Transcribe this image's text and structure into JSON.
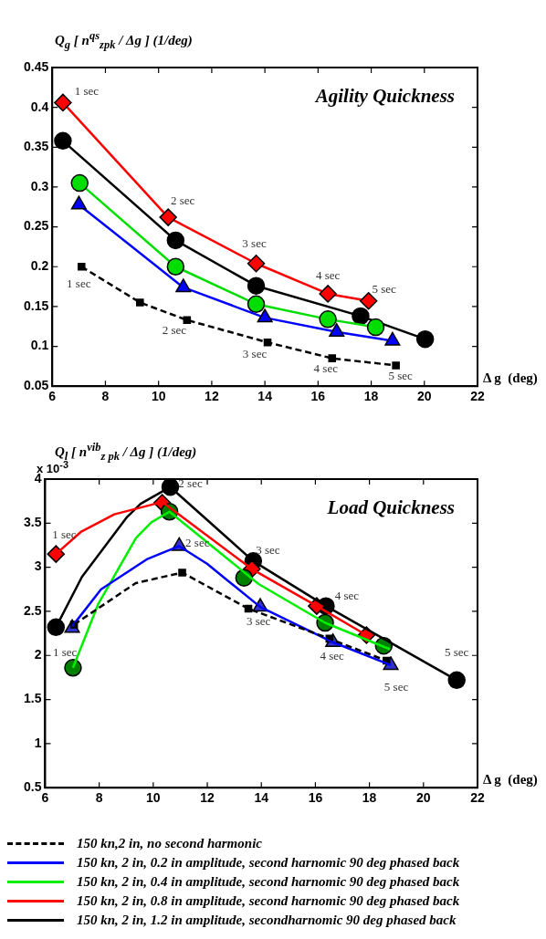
{
  "chart_data": [
    {
      "type": "line",
      "title": "Agility Quickness",
      "xlabel": "Δ g  (deg)",
      "ylabel": "Q$_{g}$ [ n$^{qs}$$_{zpk}$ / Δg ]   (1/deg)",
      "xlim": [
        6,
        22
      ],
      "xticks": [
        6,
        8,
        10,
        12,
        14,
        16,
        18,
        20,
        22
      ],
      "ylim": [
        0.05,
        0.45
      ],
      "yticks": [
        0.05,
        0.1,
        0.15,
        0.2,
        0.25,
        0.3,
        0.35,
        0.4,
        0.45
      ],
      "grid": false,
      "legend": false,
      "series": [
        {
          "color": "#000000",
          "marker": "square",
          "line_style": "dashed",
          "x": [
            7.1,
            9.3,
            11.07,
            14.1,
            16.53,
            18.93
          ],
          "values": [
            0.2,
            0.155,
            0.133,
            0.105,
            0.085,
            0.076
          ]
        },
        {
          "color": "#0000ff",
          "marker": "triangle",
          "x": [
            7.0,
            10.93,
            14.0,
            16.7,
            18.8
          ],
          "values": [
            0.278,
            0.174,
            0.136,
            0.118,
            0.107
          ]
        },
        {
          "color": "#00dd00",
          "marker": "circle",
          "x": [
            7.03,
            10.64,
            13.67,
            16.37,
            18.17
          ],
          "values": [
            0.305,
            0.2,
            0.153,
            0.134,
            0.124
          ]
        },
        {
          "color": "#ff0000",
          "marker": "diamond",
          "x": [
            6.4,
            10.36,
            13.67,
            16.37,
            17.9
          ],
          "values": [
            0.406,
            0.262,
            0.204,
            0.166,
            0.157
          ]
        },
        {
          "color": "#000000",
          "marker": "circle",
          "x": [
            6.4,
            10.64,
            13.67,
            17.6,
            20.03
          ],
          "values": [
            0.358,
            0.233,
            0.176,
            0.138,
            0.109
          ]
        }
      ],
      "annotations": [
        {
          "text": "1 sec",
          "x": 6.4,
          "y": 0.406
        },
        {
          "text": "2 sec",
          "x": 10.36,
          "y": 0.262
        },
        {
          "text": "3 sec",
          "x": 13.67,
          "y": 0.204
        },
        {
          "text": "4 sec",
          "x": 16.37,
          "y": 0.166
        },
        {
          "text": "5 sec",
          "x": 17.9,
          "y": 0.157
        },
        {
          "text": "1 sec",
          "x": 7.1,
          "y": 0.2
        },
        {
          "text": "2 sec",
          "x": 11.07,
          "y": 0.133
        },
        {
          "text": "3 sec",
          "x": 14.1,
          "y": 0.105
        },
        {
          "text": "4 sec",
          "x": 16.53,
          "y": 0.085
        },
        {
          "text": "5 sec",
          "x": 18.93,
          "y": 0.076
        }
      ]
    },
    {
      "type": "line",
      "title": "Load Quickness",
      "xlabel": "Δ g  (deg)",
      "ylabel": "Q$_{l}$ [ n$^{vib}$$_{z pk}$ / Δg ]   (1/deg)",
      "xlim": [
        6,
        22
      ],
      "xticks": [
        6,
        8,
        10,
        12,
        14,
        16,
        18,
        20,
        22
      ],
      "ylim": [
        0.5,
        4
      ],
      "yticks": [
        0.5,
        1,
        1.5,
        2,
        2.5,
        3,
        3.5,
        4
      ],
      "grid": false,
      "legend": "bottom",
      "series": [
        {
          "name": "150 kn,2 in, no second harmonic",
          "color": "#000000",
          "marker": "none",
          "line_style": "dashed",
          "x": [
            7.07,
            9.35,
            11.07,
            13.52,
            16.52,
            18.63
          ],
          "values": [
            2.35,
            2.82,
            2.94,
            2.53,
            2.19,
            1.94
          ]
        },
        {
          "name": "150 kn, 2 in, 0.2 in amplitude, second harnomic 90 deg phased back",
          "color": "#0000ff",
          "marker": "none",
          "x": [
            7.0,
            8.07,
            9.76,
            10.96,
            11.99,
            13.96,
            16.65,
            18.79
          ],
          "values": [
            2.33,
            2.75,
            3.09,
            3.24,
            3.04,
            2.55,
            2.15,
            1.89
          ]
        },
        {
          "name": "150 kn, 2 in, 0.4 in amplitude, second harnomic 90 deg phased back",
          "color": "#00ee00",
          "marker": "none",
          "x": [
            7.03,
            7.96,
            9.36,
            9.93,
            10.6,
            13.9,
            16.36,
            18.76
          ],
          "values": [
            1.86,
            2.58,
            3.33,
            3.51,
            3.63,
            2.81,
            2.37,
            2.07
          ]
        },
        {
          "name": "150 kn, 2 in, 0.8 in amplitude, second harnomic 90 deg phased back",
          "color": "#ff0000",
          "marker": "none",
          "x": [
            6.4,
            7.32,
            8.56,
            10.33,
            13.65,
            16.05,
            17.89
          ],
          "values": [
            3.15,
            3.4,
            3.6,
            3.74,
            2.98,
            2.56,
            2.23
          ]
        },
        {
          "name": "150 kn, 2 in, 1.2 in amplitude, secondharnomic 90 deg phased back",
          "color": "#000000",
          "marker": "none",
          "x": [
            6.4,
            7.36,
            9.03,
            9.53,
            10.63,
            13.7,
            16.39,
            21.23
          ],
          "values": [
            2.32,
            2.89,
            3.57,
            3.72,
            3.91,
            3.07,
            2.56,
            1.72
          ]
        },
        {
          "type": "scatter",
          "color": "#000000",
          "marker": "square",
          "x": [
            7.07,
            11.07,
            13.52,
            16.52,
            18.63
          ],
          "values": [
            2.35,
            2.94,
            2.53,
            2.19,
            1.94
          ]
        },
        {
          "type": "scatter",
          "color": "#3333cc",
          "marker": "triangle",
          "x": [
            7.0,
            10.96,
            13.96,
            16.65,
            18.79
          ],
          "values": [
            2.31,
            3.24,
            2.55,
            2.15,
            1.89
          ]
        },
        {
          "type": "scatter",
          "color": "#008000",
          "marker": "circle",
          "x": [
            7.03,
            10.6,
            13.36,
            16.36,
            18.53
          ],
          "values": [
            1.86,
            3.63,
            2.88,
            2.37,
            2.11
          ]
        },
        {
          "type": "scatter",
          "color": "#ff0000",
          "marker": "diamond",
          "x": [
            6.4,
            10.33,
            13.65,
            16.05,
            17.89
          ],
          "values": [
            3.15,
            3.73,
            2.98,
            2.56,
            2.23
          ]
        },
        {
          "type": "scatter",
          "color": "#000000",
          "marker": "circle",
          "x": [
            6.4,
            10.63,
            13.7,
            16.39,
            21.23
          ],
          "values": [
            2.32,
            3.91,
            3.07,
            2.56,
            1.72
          ]
        }
      ],
      "annotations": [
        "x 10$^{-3}$",
        {
          "text": "2 sec",
          "x": 10.63,
          "y": 3.91
        },
        {
          "text": "1 sec",
          "x": 6.4,
          "y": 3.15
        },
        {
          "text": "2 sec",
          "x": 10.96,
          "y": 3.24
        },
        {
          "text": "3 sec",
          "x": 13.7,
          "y": 3.07
        },
        {
          "text": "4 sec",
          "x": 16.39,
          "y": 2.56
        },
        {
          "text": "3 sec",
          "x": 13.96,
          "y": 2.55
        },
        {
          "text": "1 sec",
          "x": 7.0,
          "y": 2.31
        },
        {
          "text": "4 sec",
          "x": 16.65,
          "y": 2.15
        },
        {
          "text": "5 sec",
          "x": 21.23,
          "y": 1.72
        },
        {
          "text": "5 sec",
          "x": 18.79,
          "y": 1.89
        }
      ]
    }
  ]
}
